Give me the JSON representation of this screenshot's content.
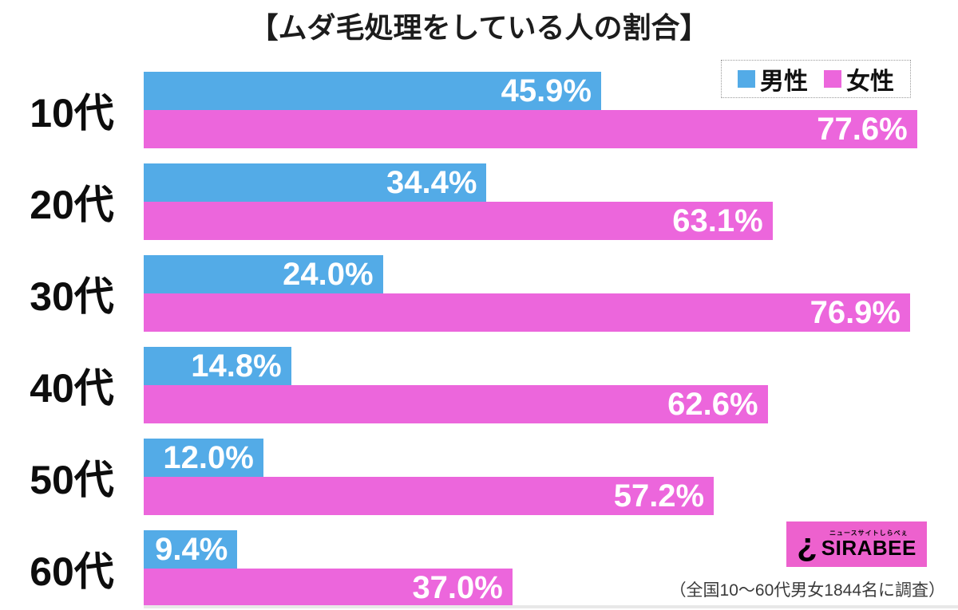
{
  "title": "【ムダ毛処理をしている人の割合】",
  "legend": {
    "male_label": "男性",
    "female_label": "女性"
  },
  "footnote": "（全国10〜60代男女1844名に調査）",
  "logo": {
    "mark": "¿",
    "tagline": "ニュースサイトしらべぇ",
    "brand": "SIRABEE"
  },
  "colors": {
    "male": "#53ABE7",
    "female": "#EC66DC",
    "logo_bg": "#ED61CE",
    "value_text": "#FFFFFF",
    "footnote_text": "#3A3A3A",
    "baseline": "#E8E8E8"
  },
  "chart_data": {
    "type": "bar",
    "orientation": "horizontal",
    "title": "【ムダ毛処理をしている人の割合】",
    "categories": [
      "10代",
      "20代",
      "30代",
      "40代",
      "50代",
      "60代"
    ],
    "series": [
      {
        "name": "男性",
        "color": "#53ABE7",
        "values": [
          45.9,
          34.4,
          24.0,
          14.8,
          12.0,
          9.4
        ]
      },
      {
        "name": "女性",
        "color": "#EC66DC",
        "values": [
          77.6,
          63.1,
          76.9,
          62.6,
          57.2,
          37.0
        ]
      }
    ],
    "value_suffix": "%",
    "xlim": [
      0,
      78.5
    ],
    "grid": false,
    "legend_position": "top-right",
    "value_labels": "inside-end"
  }
}
